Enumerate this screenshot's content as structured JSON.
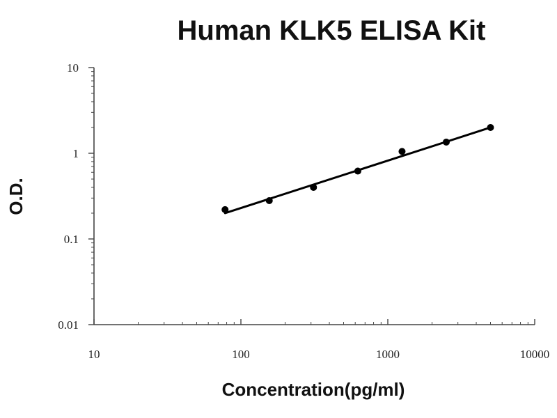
{
  "chart_data": {
    "type": "scatter",
    "title": "Human KLK5 ELISA Kit",
    "xlabel": "Concentration(pg/ml)",
    "ylabel": "O.D.",
    "x_scale": "log",
    "y_scale": "log",
    "xlim": [
      10,
      10000
    ],
    "ylim": [
      0.01,
      10
    ],
    "x_tick_labels": [
      "10",
      "100",
      "1000",
      "10000"
    ],
    "y_tick_labels": [
      "0.01",
      "0.1",
      "1",
      "10"
    ],
    "grid": false,
    "series": [
      {
        "points": [
          {
            "x": 78,
            "y": 0.22
          },
          {
            "x": 156,
            "y": 0.28
          },
          {
            "x": 312,
            "y": 0.4
          },
          {
            "x": 625,
            "y": 0.62
          },
          {
            "x": 1250,
            "y": 1.05
          },
          {
            "x": 2500,
            "y": 1.35
          },
          {
            "x": 5000,
            "y": 2.0
          }
        ]
      }
    ],
    "fit_line": {
      "x": [
        78,
        5000
      ],
      "y": [
        0.2,
        2.0
      ]
    },
    "colors": {
      "marker": "#000000",
      "line": "#000000",
      "axis": "#444444"
    }
  }
}
